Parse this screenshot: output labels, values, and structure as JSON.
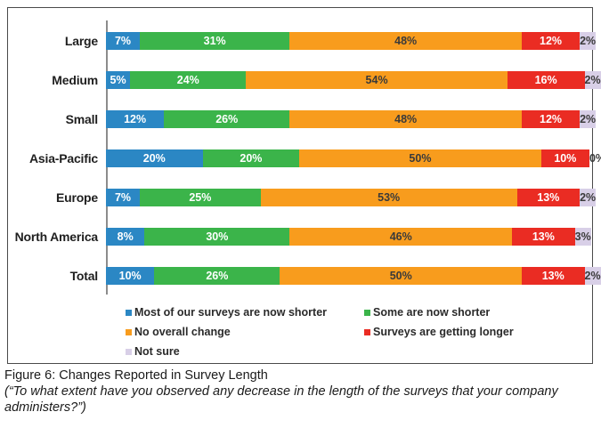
{
  "chart_data": {
    "type": "bar",
    "orientation": "horizontal-stacked",
    "title": "",
    "xlabel": "",
    "ylabel": "",
    "xlim": [
      0,
      100
    ],
    "grid": false,
    "legend_position": "bottom",
    "value_suffix": "%",
    "categories": [
      "Large",
      "Medium",
      "Small",
      "Asia-Pacific",
      "Europe",
      "North America",
      "Total"
    ],
    "series": [
      {
        "name": "Most of our surveys are now shorter",
        "color": "#2B87C4",
        "label_color": "#FFFFFF",
        "values": [
          7,
          5,
          12,
          20,
          7,
          8,
          10
        ]
      },
      {
        "name": "Some are now shorter",
        "color": "#3BB44A",
        "label_color": "#FFFFFF",
        "values": [
          31,
          24,
          26,
          20,
          25,
          30,
          26
        ]
      },
      {
        "name": "No overall change",
        "color": "#F89C1D",
        "label_color": "#3A3A3A",
        "values": [
          48,
          54,
          48,
          50,
          53,
          46,
          50
        ]
      },
      {
        "name": "Surveys are getting longer",
        "color": "#EA2C23",
        "label_color": "#FFFFFF",
        "values": [
          12,
          16,
          12,
          10,
          13,
          13,
          13
        ]
      },
      {
        "name": "Not sure",
        "color": "#D8CFE7",
        "label_color": "#3A3A3A",
        "values": [
          2,
          2,
          2,
          0,
          2,
          3,
          2
        ]
      }
    ]
  },
  "caption": {
    "title": "Figure 6: Changes Reported in Survey Length",
    "question_lines": [
      "(“To what extent have you observed any decrease in the length of the surveys that your company",
      "administers?”)"
    ]
  }
}
